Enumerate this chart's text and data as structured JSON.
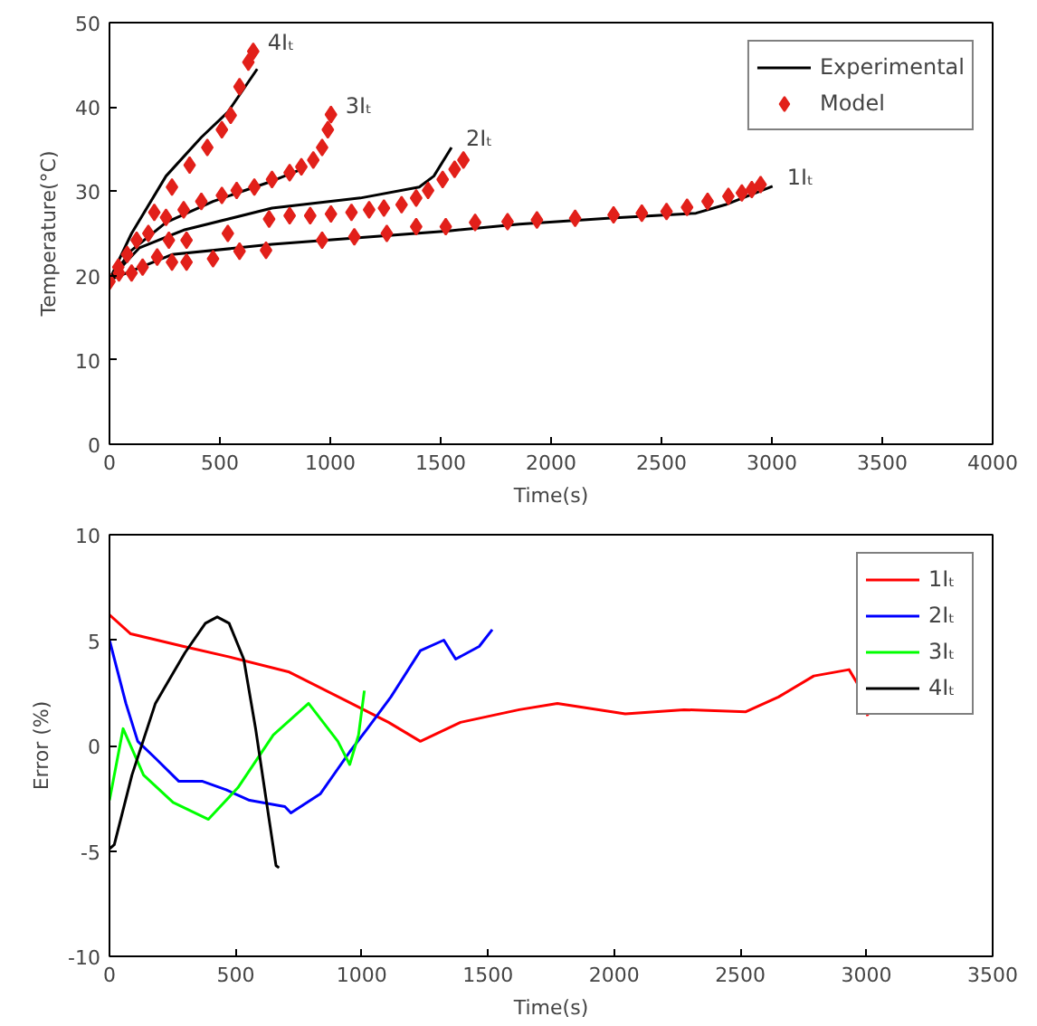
{
  "chart_data": [
    {
      "type": "line",
      "xlabel": "Time(s)",
      "ylabel": "Temperature(°C)",
      "xlim": [
        0,
        4000
      ],
      "ylim": [
        0,
        50
      ],
      "xticks": [
        0,
        500,
        1000,
        1500,
        2000,
        2500,
        3000,
        3500,
        4000
      ],
      "yticks": [
        0,
        10,
        20,
        30,
        40,
        50
      ],
      "grid": false,
      "legend": "top right",
      "series": [
        {
          "name": "Experimental",
          "type": "line",
          "color": "#000000",
          "line_style": "solid",
          "x": [
            0,
            283,
            736,
            1536,
            1856,
            2256,
            2656,
            2789,
            3003
          ],
          "values": [
            19.5,
            22.5,
            23.7,
            25.3,
            26.1,
            26.8,
            27.4,
            28.4,
            30.6
          ]
        },
        {
          "type": "line",
          "color": "#000000",
          "line_style": "solid",
          "x": [
            0,
            136,
            336,
            736,
            1136,
            1403,
            1469,
            1549
          ],
          "values": [
            19.5,
            23.3,
            25.4,
            28,
            29.2,
            30.5,
            31.8,
            35.2
          ]
        },
        {
          "type": "line",
          "color": "#000000",
          "line_style": "solid",
          "x": [
            0,
            100,
            256,
            469,
            736,
            869
          ],
          "values": [
            19.5,
            23,
            26.3,
            28.8,
            31.2,
            32.6
          ]
        },
        {
          "type": "line",
          "color": "#000000",
          "line_style": "solid",
          "x": [
            0,
            100,
            256,
            416,
            536,
            669
          ],
          "values": [
            19.5,
            25,
            31.8,
            36.4,
            39.4,
            44.5
          ]
        },
        {
          "name": "Model",
          "type": "scatter",
          "marker": "diamond",
          "color": "#e2201a",
          "x": [
            0,
            100,
            150,
            216,
            283,
            349,
            469,
            589,
            709,
            963,
            1109,
            1256,
            1389,
            1523,
            1656,
            1803,
            1936,
            2109,
            2283,
            2411,
            2523,
            2616,
            2709,
            2803,
            2864,
            2909,
            2949
          ],
          "values": [
            19.3,
            20.3,
            21,
            22.2,
            21.6,
            21.6,
            22,
            22.9,
            23,
            24.2,
            24.6,
            25,
            25.8,
            25.8,
            26.3,
            26.4,
            26.6,
            26.8,
            27.2,
            27.4,
            27.6,
            28.1,
            28.8,
            29.4,
            29.8,
            30.2,
            30.8
          ]
        },
        {
          "type": "scatter",
          "marker": "diamond",
          "color": "#e2201a",
          "x": [
            269,
            349,
            536,
            723,
            816,
            909,
            1003,
            1096,
            1176,
            1243,
            1323,
            1389,
            1443,
            1509,
            1563,
            1603
          ],
          "values": [
            24.2,
            24.2,
            25,
            26.7,
            27.1,
            27.1,
            27.3,
            27.5,
            27.8,
            28,
            28.4,
            29.2,
            30.1,
            31.4,
            32.6,
            33.7
          ]
        },
        {
          "type": "scatter",
          "marker": "diamond",
          "color": "#e2201a",
          "x": [
            40,
            80,
            176,
            256,
            336,
            416,
            509,
            576,
            656,
            736,
            816,
            869,
            923,
            963,
            989,
            1003
          ],
          "values": [
            21,
            22.5,
            25,
            26.9,
            27.8,
            28.8,
            29.5,
            30.1,
            30.5,
            31.4,
            32.2,
            32.9,
            33.7,
            35.2,
            37.3,
            39.1
          ]
        },
        {
          "type": "scatter",
          "marker": "diamond",
          "color": "#e2201a",
          "x": [
            43,
            123,
            203,
            283,
            363,
            443,
            509,
            549,
            589,
            629,
            651
          ],
          "values": [
            20.3,
            24.2,
            27.5,
            30.5,
            33.1,
            35.2,
            37.3,
            39,
            42.4,
            45.3,
            46.6
          ]
        }
      ],
      "annotations": [
        {
          "text": "4Iₜ",
          "x": 651,
          "y": 46.6
        },
        {
          "text": "3Iₜ",
          "x": 1003,
          "y": 39.1
        },
        {
          "text": "2Iₜ",
          "x": 1549,
          "y": 35.2
        },
        {
          "text": "1Iₜ",
          "x": 3003,
          "y": 30.6
        }
      ]
    },
    {
      "type": "line",
      "xlabel": "Time(s)",
      "ylabel": "Error (%)",
      "xlim": [
        0,
        3500
      ],
      "ylim": [
        -10,
        10
      ],
      "xticks": [
        0,
        500,
        1000,
        1500,
        2000,
        2500,
        3000,
        3500
      ],
      "yticks": [
        -10,
        -5,
        0,
        5,
        10
      ],
      "grid": false,
      "legend": "top right",
      "line_style": "solid",
      "series": [
        {
          "name": "1Iₜ",
          "color": "#ff0000",
          "x": [
            0,
            84,
            294,
            476,
            709,
            942,
            1106,
            1232,
            1391,
            1624,
            1775,
            2044,
            2277,
            2522,
            2651,
            2791,
            2931,
            2966,
            3005
          ],
          "values": [
            6.2,
            5.3,
            4.7,
            4.2,
            3.5,
            2.1,
            1.1,
            0.2,
            1.1,
            1.7,
            2,
            1.5,
            1.7,
            1.6,
            2.3,
            3.3,
            3.6,
            2.9,
            1.4
          ]
        },
        {
          "name": "2Iₜ",
          "color": "#0000ff",
          "x": [
            0,
            65,
            112,
            182,
            275,
            369,
            462,
            555,
            695,
            719,
            835,
            952,
            1022,
            1115,
            1232,
            1325,
            1372,
            1465,
            1517
          ],
          "values": [
            5,
            2,
            0.2,
            -0.6,
            -1.7,
            -1.7,
            -2.1,
            -2.6,
            -2.9,
            -3.2,
            -2.3,
            -0.3,
            0.8,
            2.3,
            4.5,
            5,
            4.1,
            4.7,
            5.5
          ]
        },
        {
          "name": "3Iₜ",
          "color": "#00ff00",
          "x": [
            0,
            54,
            135,
            252,
            392,
            509,
            649,
            789,
            905,
            952,
            987,
            1010
          ],
          "values": [
            -2.6,
            0.8,
            -1.4,
            -2.7,
            -3.5,
            -2,
            0.5,
            2,
            0.2,
            -0.9,
            0.5,
            2.6
          ]
        },
        {
          "name": "4Iₜ",
          "color": "#000000",
          "x": [
            0,
            19,
            89,
            182,
            299,
            380,
            427,
            474,
            532,
            579,
            625,
            660,
            672
          ],
          "values": [
            -4.9,
            -4.7,
            -1.4,
            2,
            4.4,
            5.8,
            6.1,
            5.8,
            4.1,
            0.8,
            -2.9,
            -5.7,
            -5.8
          ]
        }
      ]
    }
  ]
}
